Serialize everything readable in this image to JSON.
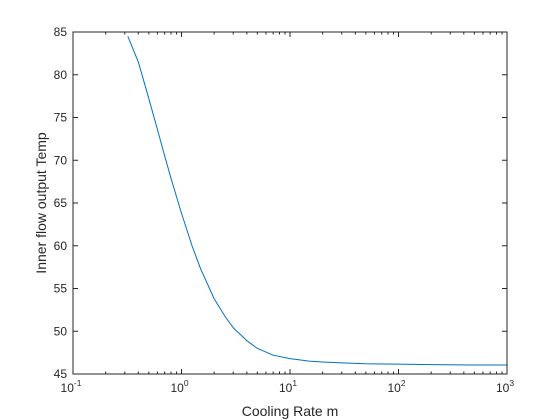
{
  "chart_data": {
    "type": "line",
    "title": "",
    "xlabel": "Cooling Rate m",
    "ylabel": "Inner flow output Temp",
    "x_scale": "log",
    "xlim": [
      0.1,
      1000
    ],
    "ylim": [
      45,
      85
    ],
    "grid": false,
    "x_ticks": [
      {
        "base": "10",
        "exp": "-1",
        "value": 0.1
      },
      {
        "base": "10",
        "exp": "0",
        "value": 1
      },
      {
        "base": "10",
        "exp": "1",
        "value": 10
      },
      {
        "base": "10",
        "exp": "2",
        "value": 100
      },
      {
        "base": "10",
        "exp": "3",
        "value": 1000
      }
    ],
    "y_ticks": [
      "45",
      "50",
      "55",
      "60",
      "65",
      "70",
      "75",
      "80",
      "85"
    ],
    "series": [
      {
        "color": "#0072BD",
        "x": [
          0.32,
          0.4,
          0.5,
          0.6,
          0.7,
          0.8,
          1.0,
          1.25,
          1.5,
          2.0,
          2.5,
          3.0,
          4.0,
          5.0,
          7.0,
          10,
          15,
          20,
          30,
          50,
          100,
          200,
          500,
          1000
        ],
        "y": [
          84.5,
          81.5,
          77.2,
          73.6,
          70.5,
          67.9,
          63.8,
          60.0,
          57.3,
          53.8,
          51.8,
          50.4,
          48.9,
          48.0,
          47.2,
          46.8,
          46.5,
          46.4,
          46.3,
          46.2,
          46.15,
          46.1,
          46.05,
          46.05
        ]
      }
    ]
  }
}
